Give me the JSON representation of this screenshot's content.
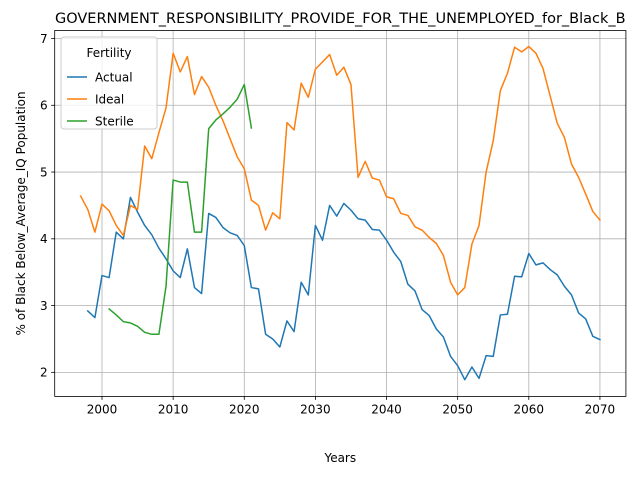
{
  "chart_data": {
    "type": "line",
    "title": "GOVERNMENT_RESPONSIBILITY_PROVIDE_FOR_THE_UNEMPLOYED_for_Black_B",
    "xlabel": "Years",
    "ylabel": "% of Black Below_Average_IQ Population",
    "xlim": [
      1993.35,
      2073.65
    ],
    "ylim": [
      1.64,
      7.12
    ],
    "xticks": [
      2000,
      2010,
      2020,
      2030,
      2040,
      2050,
      2060,
      2070
    ],
    "yticks": [
      2,
      3,
      4,
      5,
      6,
      7
    ],
    "grid": true,
    "legend": {
      "title": "Fertility",
      "placement": "top-left"
    },
    "series": [
      {
        "name": "Actual",
        "color": "#1f77b4",
        "x": [
          1998,
          1999,
          2000,
          2001,
          2002,
          2003,
          2004,
          2005,
          2006,
          2007,
          2008,
          2009,
          2010,
          2011,
          2012,
          2013,
          2014,
          2015,
          2016,
          2017,
          2018,
          2019,
          2020,
          2021,
          2022,
          2023,
          2024,
          2025,
          2026,
          2027,
          2028,
          2029,
          2030,
          2031,
          2032,
          2033,
          2034,
          2035,
          2036,
          2037,
          2038,
          2039,
          2040,
          2041,
          2042,
          2043,
          2044,
          2045,
          2046,
          2047,
          2048,
          2049,
          2050,
          2051,
          2052,
          2053,
          2054,
          2055,
          2056,
          2057,
          2058,
          2059,
          2060,
          2061,
          2062,
          2063,
          2064,
          2065,
          2066,
          2067,
          2068,
          2069,
          2070
        ],
        "y": [
          2.92,
          2.82,
          3.45,
          3.42,
          4.1,
          4.0,
          4.62,
          4.4,
          4.2,
          4.06,
          3.86,
          3.7,
          3.52,
          3.42,
          3.85,
          3.27,
          3.18,
          4.38,
          4.32,
          4.17,
          4.09,
          4.05,
          3.9,
          3.27,
          3.25,
          2.57,
          2.5,
          2.38,
          2.77,
          2.61,
          3.35,
          3.16,
          4.2,
          3.98,
          4.5,
          4.34,
          4.53,
          4.43,
          4.3,
          4.28,
          4.14,
          4.13,
          3.98,
          3.8,
          3.66,
          3.32,
          3.22,
          2.94,
          2.85,
          2.65,
          2.53,
          2.24,
          2.1,
          1.89,
          2.08,
          1.91,
          2.25,
          2.24,
          2.86,
          2.87,
          3.44,
          3.43,
          3.78,
          3.61,
          3.64,
          3.54,
          3.46,
          3.29,
          3.16,
          2.89,
          2.8,
          2.54,
          2.49
        ]
      },
      {
        "name": "Ideal",
        "color": "#ff7f0e",
        "x": [
          1997,
          1998,
          1999,
          2000,
          2001,
          2002,
          2003,
          2004,
          2005,
          2006,
          2007,
          2008,
          2009,
          2010,
          2011,
          2012,
          2013,
          2014,
          2015,
          2016,
          2017,
          2018,
          2019,
          2020,
          2021,
          2022,
          2023,
          2024,
          2025,
          2026,
          2027,
          2028,
          2029,
          2030,
          2031,
          2032,
          2033,
          2034,
          2035,
          2036,
          2037,
          2038,
          2039,
          2040,
          2041,
          2042,
          2043,
          2044,
          2045,
          2046,
          2047,
          2048,
          2049,
          2050,
          2051,
          2052,
          2053,
          2054,
          2055,
          2056,
          2057,
          2058,
          2059,
          2060,
          2061,
          2062,
          2063,
          2064,
          2065,
          2066,
          2067,
          2068,
          2069,
          2070
        ],
        "y": [
          4.64,
          4.44,
          4.1,
          4.52,
          4.42,
          4.2,
          4.05,
          4.5,
          4.44,
          5.39,
          5.2,
          5.59,
          5.96,
          6.78,
          6.5,
          6.73,
          6.16,
          6.43,
          6.27,
          6.0,
          5.77,
          5.5,
          5.23,
          5.05,
          4.58,
          4.5,
          4.13,
          4.39,
          4.3,
          5.74,
          5.63,
          6.33,
          6.12,
          6.54,
          6.65,
          6.76,
          6.45,
          6.57,
          6.31,
          4.92,
          5.16,
          4.91,
          4.88,
          4.63,
          4.6,
          4.38,
          4.35,
          4.18,
          4.13,
          4.02,
          3.93,
          3.75,
          3.35,
          3.16,
          3.27,
          3.92,
          4.2,
          5.0,
          5.47,
          6.22,
          6.48,
          6.87,
          6.8,
          6.88,
          6.78,
          6.55,
          6.14,
          5.73,
          5.52,
          5.12,
          4.92,
          4.67,
          4.41,
          4.28
        ]
      },
      {
        "name": "Sterile",
        "color": "#2ca02c",
        "x": [
          2001,
          2002,
          2003,
          2004,
          2005,
          2006,
          2007,
          2008,
          2009,
          2010,
          2011,
          2012,
          2013,
          2014,
          2015,
          2016,
          2017,
          2018,
          2019,
          2020,
          2021
        ],
        "y": [
          2.95,
          2.86,
          2.76,
          2.74,
          2.69,
          2.6,
          2.57,
          2.57,
          3.29,
          4.88,
          4.85,
          4.85,
          4.1,
          4.1,
          5.65,
          5.78,
          5.87,
          5.97,
          6.09,
          6.31,
          5.66
        ]
      }
    ]
  }
}
